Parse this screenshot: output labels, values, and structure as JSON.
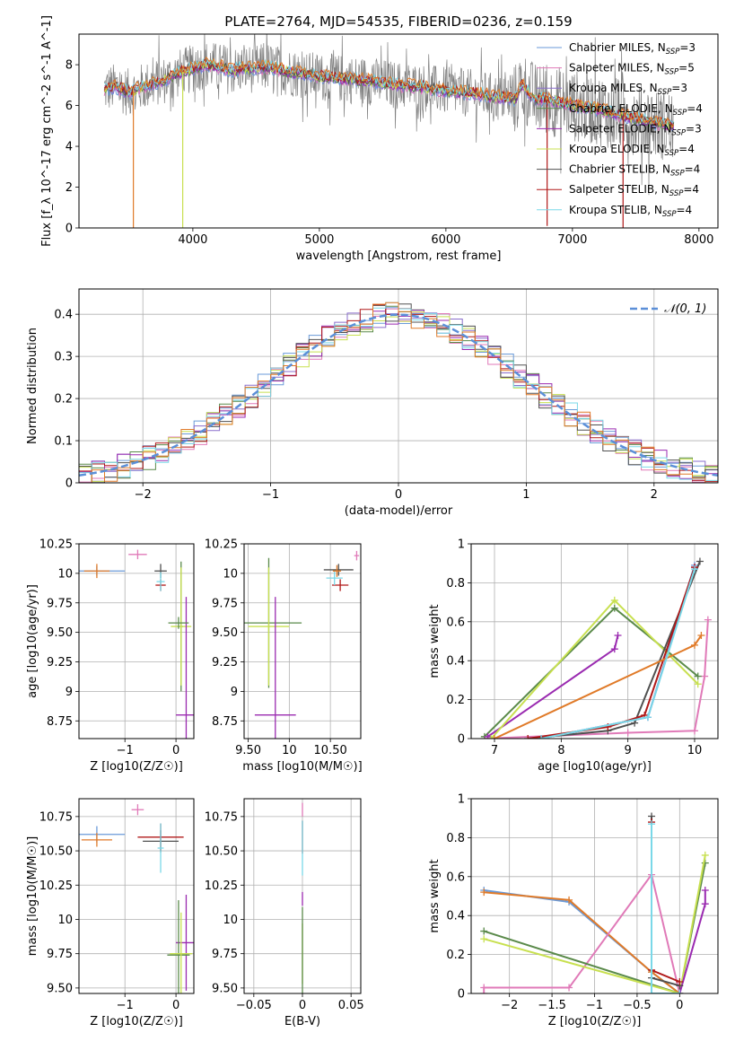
{
  "figure_title": "PLATE=2764, MJD=54535, FIBERID=0236, z=0.159",
  "colors": {
    "Chabrier MILES": "#6a9ad8",
    "Salpeter MILES": "#e07ab8",
    "Kroupa MILES": "#8a6ecc",
    "Chabrier ELODIE": "#5a8a4a",
    "Salpeter ELODIE": "#9a2ab0",
    "Kroupa ELODIE": "#c8e050",
    "Chabrier STELIB": "#505050",
    "Salpeter STELIB": "#b01818",
    "Kroupa STELIB": "#7ad8e8",
    "orange_model": "#e07a28",
    "data_gray": "#808080",
    "normal_curve": "#5b8fd8"
  },
  "chart_data": [
    {
      "id": "spectrum",
      "type": "line",
      "xlabel": "wavelength [Angstrom, rest frame]",
      "ylabel": "Flux [f_λ 10^-17 erg cm^-2 s^-1 A^-1]",
      "xlim": [
        3100,
        8150
      ],
      "ylim": [
        0,
        9.5
      ],
      "xticks": [
        4000,
        5000,
        6000,
        7000,
        8000
      ],
      "yticks": [
        0,
        2,
        4,
        6,
        8
      ],
      "grid": false,
      "legend_position": "right",
      "legend": [
        {
          "label": "Chabrier MILES, N",
          "sub": "SSP",
          "tail": "=3",
          "model": "Chabrier MILES"
        },
        {
          "label": "Salpeter MILES, N",
          "sub": "SSP",
          "tail": "=5",
          "model": "Salpeter MILES"
        },
        {
          "label": "Kroupa MILES, N",
          "sub": "SSP",
          "tail": "=3",
          "model": "Kroupa MILES"
        },
        {
          "label": "Chabrier ELODIE, N",
          "sub": "SSP",
          "tail": "=4",
          "model": "Chabrier ELODIE"
        },
        {
          "label": "Salpeter ELODIE, N",
          "sub": "SSP",
          "tail": "=3",
          "model": "Salpeter ELODIE"
        },
        {
          "label": "Kroupa ELODIE, N",
          "sub": "SSP",
          "tail": "=4",
          "model": "Kroupa ELODIE"
        },
        {
          "label": "Chabrier STELIB, N",
          "sub": "SSP",
          "tail": "=4",
          "model": "Chabrier STELIB"
        },
        {
          "label": "Salpeter STELIB, N",
          "sub": "SSP",
          "tail": "=4",
          "model": "Salpeter STELIB"
        },
        {
          "label": "Kroupa STELIB, N",
          "sub": "SSP",
          "tail": "=4",
          "model": "Kroupa STELIB"
        }
      ],
      "model_continuum": {
        "x": [
          3300,
          3400,
          3500,
          3600,
          3700,
          3800,
          3900,
          4000,
          4100,
          4200,
          4300,
          4400,
          4500,
          4600,
          4700,
          4800,
          4900,
          5000,
          5200,
          5400,
          5600,
          5800,
          6000,
          6200,
          6400,
          6550,
          6600,
          6700,
          6800,
          7000,
          7200,
          7400,
          7600,
          7800
        ],
        "y": [
          6.8,
          6.9,
          6.6,
          6.9,
          7.1,
          7.3,
          7.6,
          7.8,
          8.0,
          7.9,
          7.7,
          7.8,
          7.8,
          7.9,
          7.7,
          7.6,
          7.5,
          7.4,
          7.3,
          7.2,
          7.0,
          6.9,
          6.7,
          6.6,
          6.4,
          6.3,
          7.0,
          6.3,
          6.3,
          6.0,
          5.8,
          5.5,
          5.2,
          5.0
        ]
      },
      "model_dips": [
        {
          "x": 3530,
          "y": 0.0
        },
        {
          "x": 3920,
          "y": 0.0
        },
        {
          "x": 6800,
          "y": 0.1
        },
        {
          "x": 7400,
          "y": 0.0
        }
      ]
    },
    {
      "id": "residuals",
      "type": "line",
      "xlabel": "(data-model)/error",
      "ylabel": "Normed distribution",
      "xlim": [
        -2.5,
        2.5
      ],
      "ylim": [
        0,
        0.46
      ],
      "xticks": [
        -2,
        -1,
        0,
        1,
        2
      ],
      "yticks": [
        0,
        0.1,
        0.2,
        0.3,
        0.4
      ],
      "grid": true,
      "legend_position": "top-right",
      "legend": [
        {
          "label": "𝒩(0, 1)",
          "style": "dashed"
        }
      ],
      "normal": {
        "mean": 0,
        "sigma": 1
      }
    },
    {
      "id": "age-vs-Z",
      "type": "scatter",
      "xlabel": "Z [log10(Z/Z☉)]",
      "ylabel": "age [log10(age/yr)]",
      "xlim": [
        -1.9,
        0.35
      ],
      "ylim": [
        8.6,
        10.25
      ],
      "xticks": [
        -1,
        0
      ],
      "yticks": [
        8.75,
        9.0,
        9.25,
        9.5,
        9.75,
        10.0,
        10.25
      ],
      "grid": true,
      "points": [
        {
          "model": "Chabrier MILES",
          "x": -1.55,
          "y": 10.02,
          "xerr": 0.55,
          "yerr": 0.04
        },
        {
          "model": "orange_model",
          "x": -1.55,
          "y": 10.02,
          "xerr": 0.25,
          "yerr": 0.06
        },
        {
          "model": "Salpeter MILES",
          "x": -0.75,
          "y": 10.16,
          "xerr": 0.18,
          "yerr": 0.04
        },
        {
          "model": "Chabrier STELIB",
          "x": -0.3,
          "y": 10.02,
          "xerr": 0.12,
          "yerr": 0.06
        },
        {
          "model": "Salpeter STELIB",
          "x": -0.3,
          "y": 9.9,
          "xerr": 0.1,
          "yerr": 0.05
        },
        {
          "model": "Kroupa STELIB",
          "x": -0.3,
          "y": 9.93,
          "xerr": 0.08,
          "yerr": 0.08
        },
        {
          "model": "Chabrier ELODIE",
          "x": 0.1,
          "y": 9.55,
          "xerr": 0.04,
          "yerr": 0.55
        },
        {
          "model": "Kroupa ELODIE",
          "x": 0.1,
          "y": 9.55,
          "xerr": 0.2,
          "yerr": 0.5
        },
        {
          "model": "Salpeter ELODIE",
          "x": 0.2,
          "y": 8.8,
          "xerr": 0.2,
          "yerr": 1.0
        },
        {
          "model": "Chabrier ELODIE",
          "x": 0.05,
          "y": 9.58,
          "xerr": 0.2,
          "yerr": 0.05
        }
      ]
    },
    {
      "id": "age-vs-mass",
      "type": "scatter",
      "xlabel": "mass [log10(M/M☉)]",
      "ylabel": "",
      "xlim": [
        9.45,
        10.87
      ],
      "ylim": [
        8.6,
        10.25
      ],
      "xticks": [
        9.5,
        10.0,
        10.5
      ],
      "yticks": [
        8.75,
        9.0,
        9.25,
        9.5,
        9.75,
        10.0,
        10.25
      ],
      "grid": true,
      "points": [
        {
          "model": "Salpeter MILES",
          "x": 10.82,
          "y": 10.15,
          "xerr": 0.03,
          "yerr": 0.04
        },
        {
          "model": "Chabrier STELIB",
          "x": 10.6,
          "y": 10.03,
          "xerr": 0.18,
          "yerr": 0.05
        },
        {
          "model": "Salpeter STELIB",
          "x": 10.62,
          "y": 9.9,
          "xerr": 0.1,
          "yerr": 0.05
        },
        {
          "model": "Kroupa STELIB",
          "x": 10.55,
          "y": 9.96,
          "xerr": 0.1,
          "yerr": 0.06
        },
        {
          "model": "orange_model",
          "x": 10.58,
          "y": 10.02,
          "xerr": 0.05,
          "yerr": 0.05
        },
        {
          "model": "Chabrier ELODIE",
          "x": 9.75,
          "y": 9.58,
          "xerr": 0.4,
          "yerr": 0.55
        },
        {
          "model": "Kroupa ELODIE",
          "x": 9.75,
          "y": 9.55,
          "xerr": 0.25,
          "yerr": 0.5
        },
        {
          "model": "Salpeter ELODIE",
          "x": 9.83,
          "y": 8.8,
          "xerr": 0.25,
          "yerr": 1.0
        }
      ]
    },
    {
      "id": "mass-weight-vs-age",
      "type": "line",
      "xlabel": "age [log10(age/yr)]",
      "ylabel": "mass weight",
      "xlim": [
        6.65,
        10.35
      ],
      "ylim": [
        0,
        1.0
      ],
      "xticks": [
        7,
        8,
        9,
        10
      ],
      "yticks": [
        0.0,
        0.2,
        0.4,
        0.6,
        0.8,
        1.0
      ],
      "grid": true,
      "series": [
        {
          "model": "Chabrier MILES",
          "x": [
            7.7,
            9.3,
            10.0
          ],
          "y": [
            0.0,
            0.11,
            0.89
          ]
        },
        {
          "model": "Salpeter MILES",
          "x": [
            6.85,
            9.0,
            10.0,
            10.15,
            10.2
          ],
          "y": [
            0.0,
            0.03,
            0.04,
            0.32,
            0.61
          ]
        },
        {
          "model": "Kroupa MILES",
          "x": [
            7.7,
            9.3,
            10.0
          ],
          "y": [
            0.0,
            0.11,
            0.88
          ]
        },
        {
          "model": "Chabrier ELODIE",
          "x": [
            6.85,
            8.8,
            10.05
          ],
          "y": [
            0.01,
            0.67,
            0.32
          ]
        },
        {
          "model": "Salpeter ELODIE",
          "x": [
            6.9,
            8.8,
            8.85
          ],
          "y": [
            0.01,
            0.46,
            0.53
          ]
        },
        {
          "model": "Kroupa ELODIE",
          "x": [
            6.95,
            8.8,
            10.05
          ],
          "y": [
            0.0,
            0.71,
            0.28
          ]
        },
        {
          "model": "Chabrier STELIB",
          "x": [
            7.5,
            8.7,
            9.1,
            10.08
          ],
          "y": [
            0.0,
            0.04,
            0.08,
            0.91
          ]
        },
        {
          "model": "Salpeter STELIB",
          "x": [
            7.5,
            8.7,
            9.25,
            10.0
          ],
          "y": [
            0.0,
            0.06,
            0.12,
            0.88
          ]
        },
        {
          "model": "orange_model",
          "x": [
            7.0,
            10.0,
            10.1
          ],
          "y": [
            0.0,
            0.48,
            0.53
          ]
        },
        {
          "model": "Kroupa STELIB",
          "x": [
            7.7,
            9.3,
            10.0
          ],
          "y": [
            0.0,
            0.11,
            0.87
          ]
        }
      ]
    },
    {
      "id": "mass-vs-Z",
      "type": "scatter",
      "xlabel": "Z [log10(Z/Z☉)]",
      "ylabel": "mass [log10(M/M☉)]",
      "xlim": [
        -1.9,
        0.35
      ],
      "ylim": [
        9.46,
        10.88
      ],
      "xticks": [
        -1,
        0
      ],
      "yticks": [
        9.5,
        9.75,
        10.0,
        10.25,
        10.5,
        10.75
      ],
      "grid": true,
      "points": [
        {
          "model": "Chabrier MILES",
          "x": -1.55,
          "y": 10.62,
          "xerr": 0.55,
          "yerr": 0.06
        },
        {
          "model": "orange_model",
          "x": -1.55,
          "y": 10.58,
          "xerr": 0.3,
          "yerr": 0.05
        },
        {
          "model": "Salpeter MILES",
          "x": -0.75,
          "y": 10.8,
          "xerr": 0.12,
          "yerr": 0.04
        },
        {
          "model": "Chabrier STELIB",
          "x": -0.3,
          "y": 10.57,
          "xerr": 0.35,
          "yerr": 0.08
        },
        {
          "model": "Salpeter STELIB",
          "x": -0.3,
          "y": 10.6,
          "xerr": 0.45,
          "yerr": 0.1
        },
        {
          "model": "Kroupa STELIB",
          "x": -0.3,
          "y": 10.52,
          "xerr": 0.06,
          "yerr": 0.18
        },
        {
          "model": "Salpeter ELODIE",
          "x": 0.2,
          "y": 9.83,
          "xerr": 0.2,
          "yerr": 0.35
        },
        {
          "model": "Chabrier ELODIE",
          "x": 0.05,
          "y": 9.74,
          "xerr": 0.22,
          "yerr": 0.4
        },
        {
          "model": "Kroupa ELODIE",
          "x": 0.1,
          "y": 9.75,
          "xerr": 0.22,
          "yerr": 0.3
        }
      ]
    },
    {
      "id": "mass-vs-ebv",
      "type": "scatter",
      "xlabel": "E(B-V)",
      "ylabel": "",
      "xlim": [
        -0.06,
        0.06
      ],
      "ylim": [
        9.46,
        10.88
      ],
      "xticks": [
        -0.05,
        0.0,
        0.05
      ],
      "yticks": [
        9.5,
        9.75,
        10.0,
        10.25,
        10.5,
        10.75
      ],
      "grid": true,
      "points": [
        {
          "model": "Salpeter MILES",
          "x": 0.0,
          "y": 10.8,
          "xerr": 0,
          "yerr": 0.05
        },
        {
          "model": "Salpeter STELIB",
          "x": 0.0,
          "y": 10.6,
          "xerr": 0,
          "yerr": 0.12
        },
        {
          "model": "Kroupa STELIB",
          "x": 0.0,
          "y": 10.52,
          "xerr": 0,
          "yerr": 0.2
        },
        {
          "model": "Salpeter ELODIE",
          "x": 0.0,
          "y": 10.15,
          "xerr": 0,
          "yerr": 0.05
        },
        {
          "model": "Kroupa ELODIE",
          "x": 0.0,
          "y": 9.75,
          "xerr": 0,
          "yerr": 0.22
        },
        {
          "model": "Chabrier ELODIE",
          "x": 0.0,
          "y": 9.74,
          "xerr": 0,
          "yerr": 0.35
        }
      ]
    },
    {
      "id": "mass-weight-vs-Z",
      "type": "line",
      "xlabel": "Z [log10(Z/Z☉)]",
      "ylabel": "mass weight",
      "xlim": [
        -2.45,
        0.45
      ],
      "ylim": [
        0,
        1.0
      ],
      "xticks": [
        -2.0,
        -1.5,
        -1.0,
        -0.5,
        0.0
      ],
      "yticks": [
        0.0,
        0.2,
        0.4,
        0.6,
        0.8,
        1.0
      ],
      "grid": true,
      "series": [
        {
          "model": "Chabrier MILES",
          "x": [
            -2.3,
            -1.3,
            -0.33,
            0.0
          ],
          "y": [
            0.53,
            0.47,
            0.11,
            0.0
          ]
        },
        {
          "model": "orange_model",
          "x": [
            -2.3,
            -1.3,
            -0.33,
            0.0
          ],
          "y": [
            0.52,
            0.48,
            0.11,
            0.0
          ]
        },
        {
          "model": "Salpeter MILES",
          "x": [
            -2.3,
            -2.3,
            -1.3,
            -0.33,
            0.0
          ],
          "y": [
            0.0,
            0.03,
            0.03,
            0.61,
            0.0
          ]
        },
        {
          "model": "Chabrier ELODIE",
          "x": [
            -2.3,
            0.0,
            0.3
          ],
          "y": [
            0.32,
            0.0,
            0.67
          ]
        },
        {
          "model": "Kroupa ELODIE",
          "x": [
            -2.3,
            0.0,
            0.3
          ],
          "y": [
            0.28,
            0.0,
            0.71
          ]
        },
        {
          "model": "Salpeter ELODIE",
          "x": [
            0.0,
            0.3,
            0.3
          ],
          "y": [
            0.0,
            0.46,
            0.53
          ]
        },
        {
          "model": "Chabrier STELIB",
          "x": [
            -0.33,
            -0.33,
            0.0
          ],
          "y": [
            0.91,
            0.08,
            0.04
          ]
        },
        {
          "model": "Salpeter STELIB",
          "x": [
            -0.33,
            -0.33,
            0.0
          ],
          "y": [
            0.88,
            0.12,
            0.06
          ]
        },
        {
          "model": "Kroupa STELIB",
          "x": [
            -0.33,
            -0.33,
            0.0
          ],
          "y": [
            0.87,
            0.0,
            0.0
          ]
        }
      ]
    }
  ]
}
